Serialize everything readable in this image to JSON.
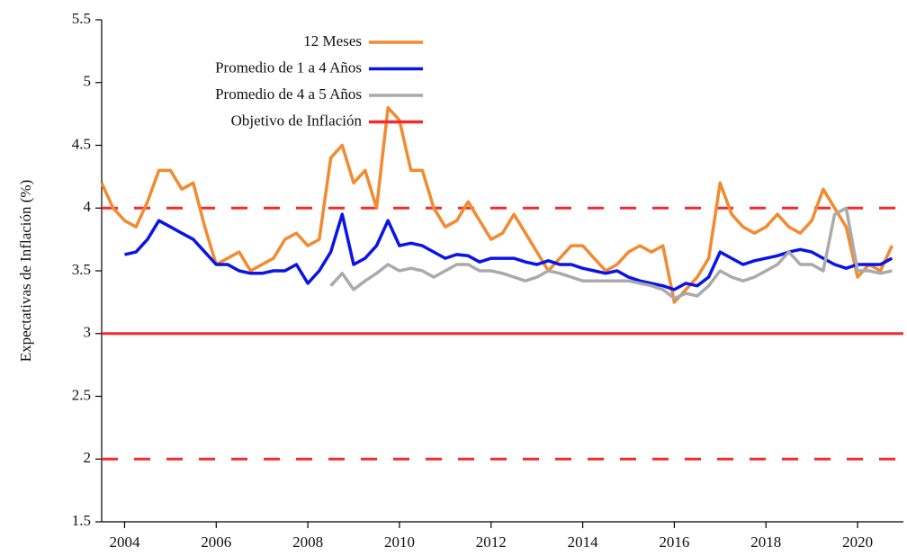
{
  "chart_data": {
    "type": "line",
    "y_label": "Expectativas de Inflación (%)",
    "x": [
      2003.5,
      2003.75,
      2004.0,
      2004.25,
      2004.5,
      2004.75,
      2005.0,
      2005.25,
      2005.5,
      2005.75,
      2006.0,
      2006.25,
      2006.5,
      2006.75,
      2007.0,
      2007.25,
      2007.5,
      2007.75,
      2008.0,
      2008.25,
      2008.5,
      2008.75,
      2009.0,
      2009.25,
      2009.5,
      2009.75,
      2010.0,
      2010.25,
      2010.5,
      2010.75,
      2011.0,
      2011.25,
      2011.5,
      2011.75,
      2012.0,
      2012.25,
      2012.5,
      2012.75,
      2013.0,
      2013.25,
      2013.5,
      2013.75,
      2014.0,
      2014.25,
      2014.5,
      2014.75,
      2015.0,
      2015.25,
      2015.5,
      2015.75,
      2016.0,
      2016.25,
      2016.5,
      2016.75,
      2017.0,
      2017.25,
      2017.5,
      2017.75,
      2018.0,
      2018.25,
      2018.5,
      2018.75,
      2019.0,
      2019.25,
      2019.5,
      2019.75,
      2020.0,
      2020.25,
      2020.5,
      2020.75
    ],
    "series": [
      {
        "name": "12 Meses",
        "color": "#f28a30",
        "values": [
          4.2,
          4.0,
          3.9,
          3.85,
          4.05,
          4.3,
          4.3,
          4.15,
          4.2,
          3.85,
          3.55,
          3.6,
          3.65,
          3.5,
          3.55,
          3.6,
          3.75,
          3.8,
          3.7,
          3.75,
          4.4,
          4.5,
          4.2,
          4.3,
          4.0,
          4.8,
          4.7,
          4.3,
          4.3,
          4.0,
          3.85,
          3.9,
          4.05,
          3.9,
          3.75,
          3.8,
          3.95,
          3.8,
          3.65,
          3.5,
          3.6,
          3.7,
          3.7,
          3.6,
          3.5,
          3.55,
          3.65,
          3.7,
          3.65,
          3.7,
          3.25,
          3.35,
          3.45,
          3.6,
          4.2,
          3.95,
          3.85,
          3.8,
          3.85,
          3.95,
          3.85,
          3.8,
          3.9,
          4.15,
          4.0,
          3.85,
          3.45,
          3.55,
          3.5,
          3.7
        ]
      },
      {
        "name": "Promedio de 1 a 4 Años",
        "color": "#0a14e6",
        "values": [
          null,
          null,
          3.63,
          3.65,
          3.75,
          3.9,
          3.85,
          3.8,
          3.75,
          3.65,
          3.55,
          3.55,
          3.5,
          3.48,
          3.48,
          3.5,
          3.5,
          3.55,
          3.4,
          3.5,
          3.65,
          3.95,
          3.55,
          3.6,
          3.7,
          3.9,
          3.7,
          3.72,
          3.7,
          3.65,
          3.6,
          3.63,
          3.62,
          3.57,
          3.6,
          3.6,
          3.6,
          3.57,
          3.55,
          3.58,
          3.55,
          3.55,
          3.52,
          3.5,
          3.48,
          3.5,
          3.45,
          3.42,
          3.4,
          3.38,
          3.35,
          3.4,
          3.38,
          3.45,
          3.65,
          3.6,
          3.55,
          3.58,
          3.6,
          3.62,
          3.65,
          3.67,
          3.65,
          3.6,
          3.55,
          3.52,
          3.55,
          3.55,
          3.55,
          3.6
        ]
      },
      {
        "name": "Promedio de 4 a 5 Años",
        "color": "#aaaaaa",
        "values": [
          null,
          null,
          null,
          null,
          null,
          null,
          null,
          null,
          null,
          null,
          null,
          null,
          null,
          null,
          null,
          null,
          null,
          null,
          null,
          null,
          3.38,
          3.48,
          3.35,
          3.42,
          3.48,
          3.55,
          3.5,
          3.52,
          3.5,
          3.45,
          3.5,
          3.55,
          3.55,
          3.5,
          3.5,
          3.48,
          3.45,
          3.42,
          3.45,
          3.5,
          3.48,
          3.45,
          3.42,
          3.42,
          3.42,
          3.42,
          3.42,
          3.4,
          3.38,
          3.35,
          3.28,
          3.32,
          3.3,
          3.38,
          3.5,
          3.45,
          3.42,
          3.45,
          3.5,
          3.55,
          3.65,
          3.55,
          3.55,
          3.5,
          3.95,
          4.0,
          3.5,
          3.5,
          3.48,
          3.5
        ]
      }
    ],
    "target": {
      "name": "Objetivo de Inflación",
      "color": "#f52a2a",
      "value": 3,
      "band": [
        2,
        4
      ]
    },
    "xlim": [
      2003.5,
      2021.0
    ],
    "xticks": [
      2004,
      2006,
      2008,
      2010,
      2012,
      2014,
      2016,
      2018,
      2020
    ],
    "ylim": [
      1.5,
      5.5
    ],
    "yticks": [
      1.5,
      2,
      2.5,
      3,
      3.5,
      4,
      4.5,
      5,
      5.5
    ],
    "legend": "top",
    "grid": false
  }
}
